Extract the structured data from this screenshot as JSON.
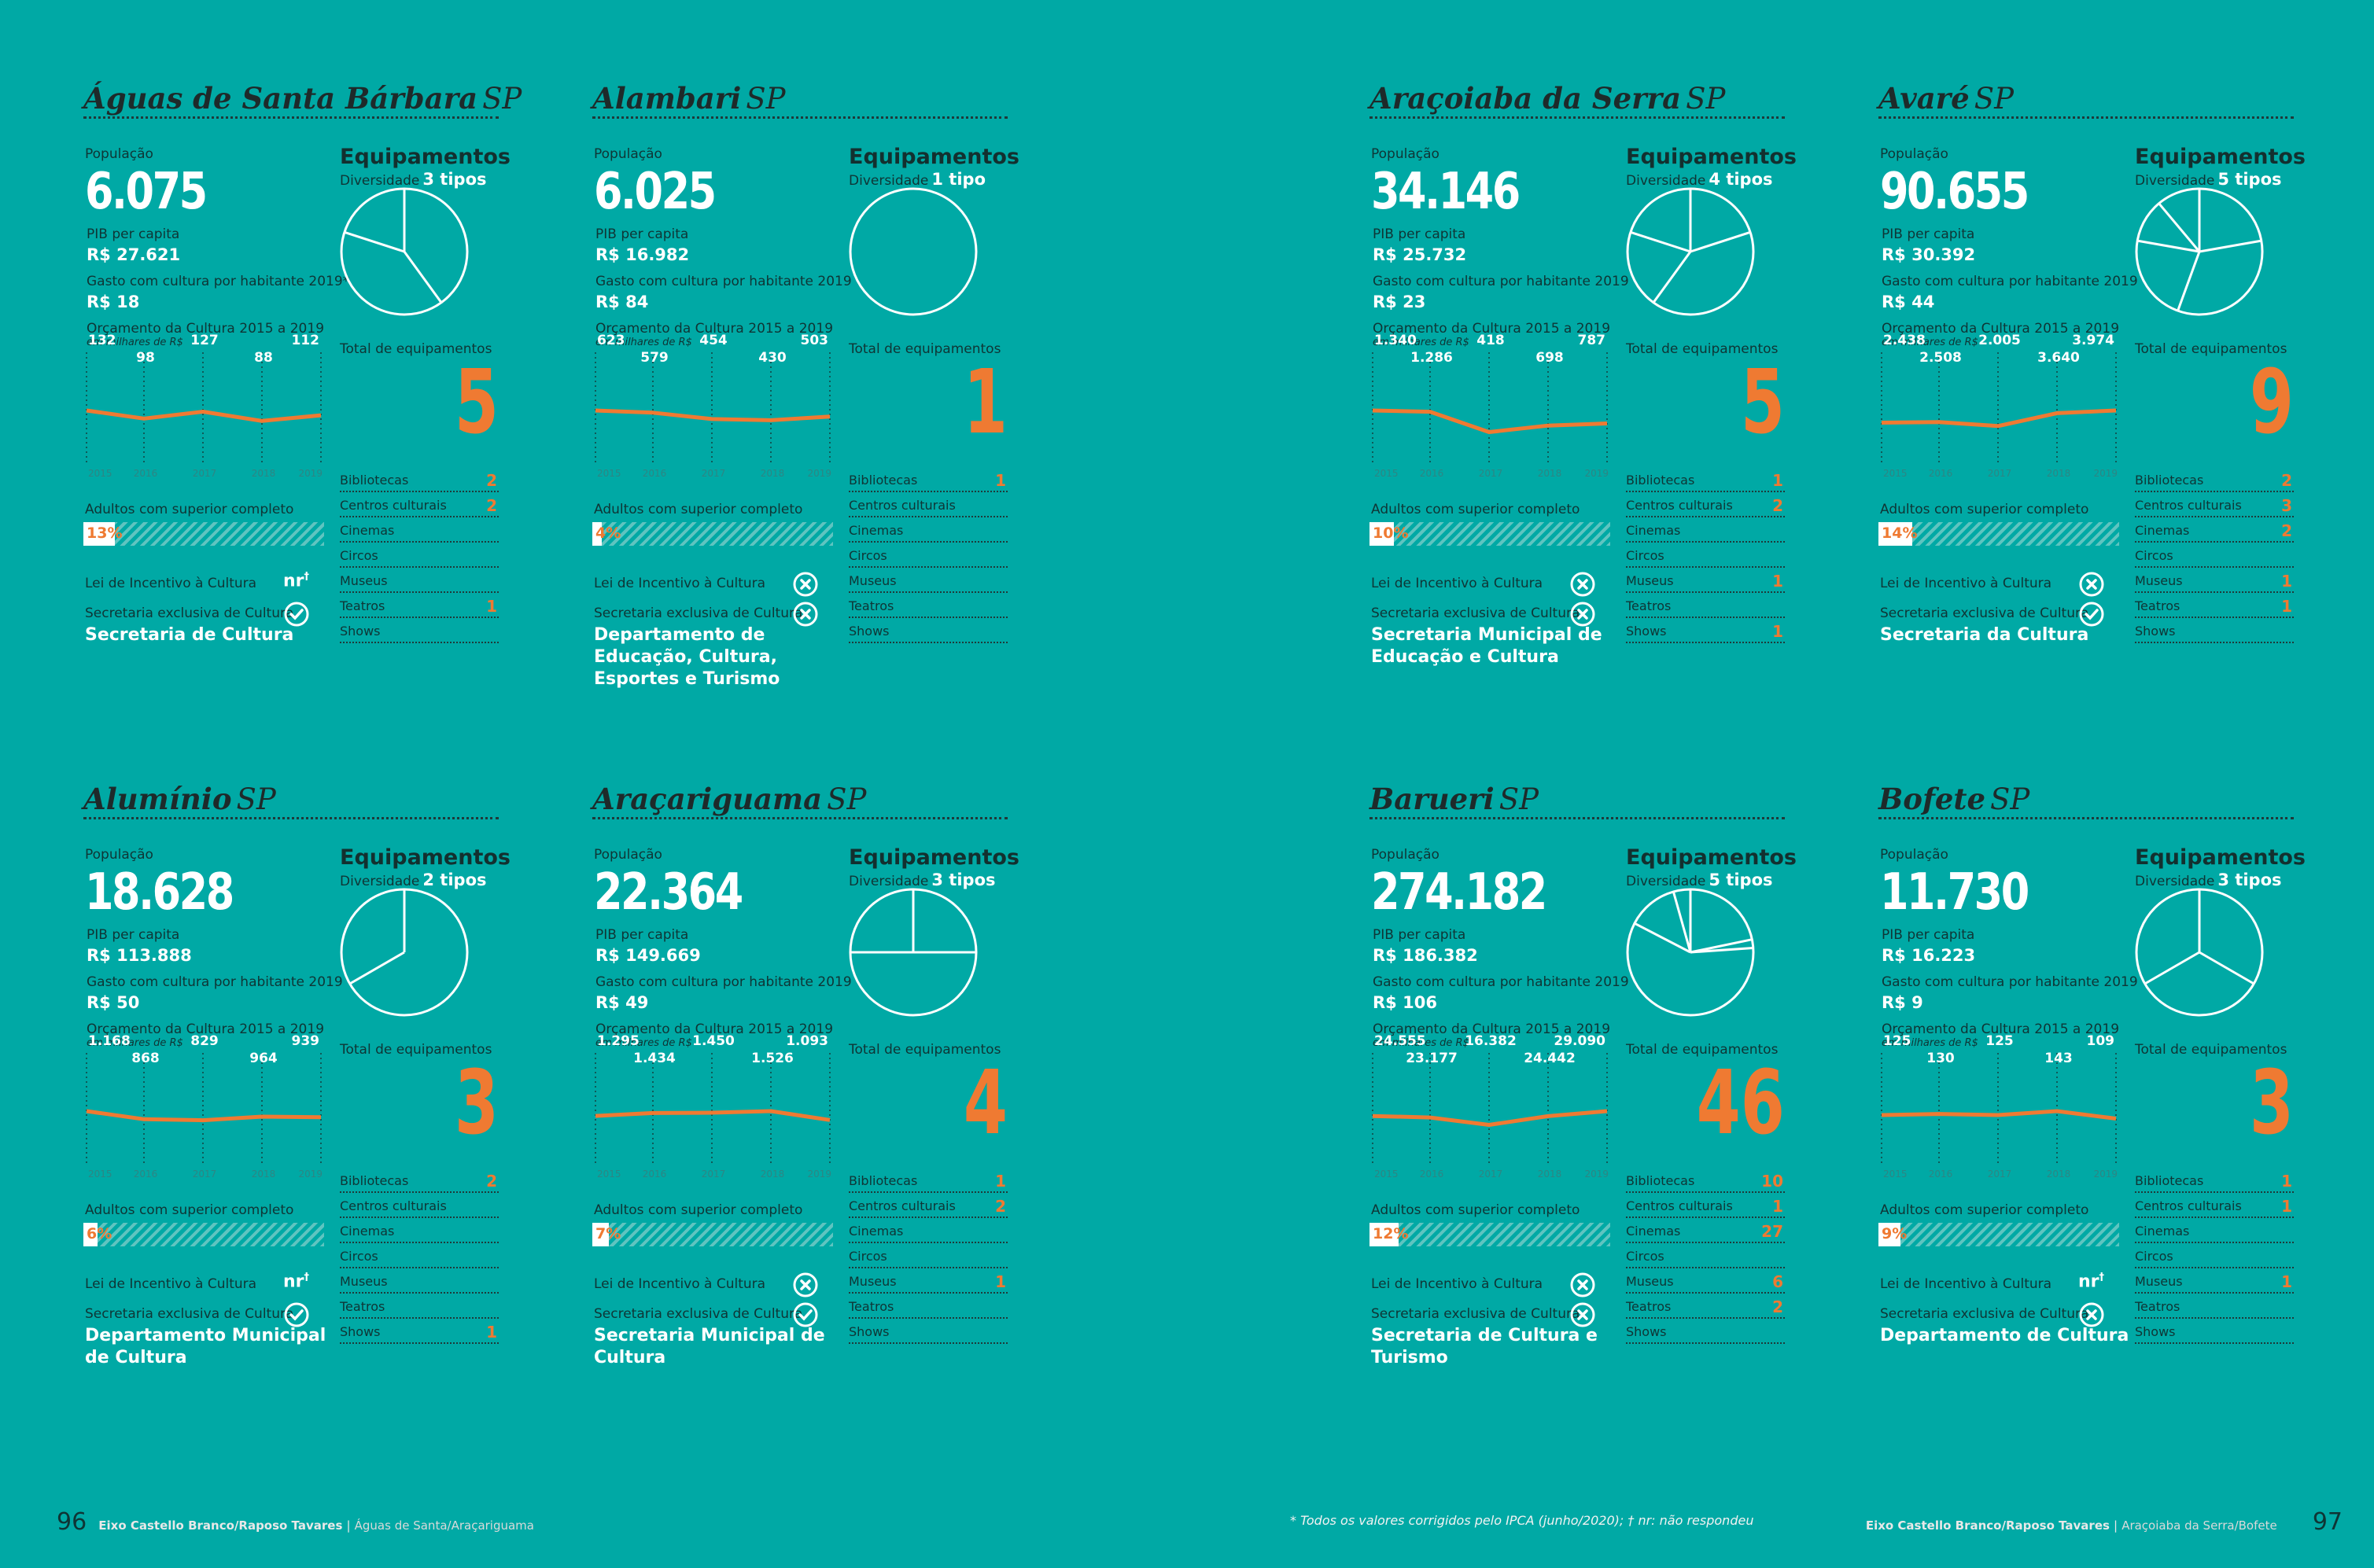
{
  "labels": {
    "populacao": "População",
    "pib": "PIB per capita",
    "gasto": "Gasto com cultura por habitante 2019",
    "gasto_star": "Gasto com cultura por habitante 2019*",
    "orcamento": "Orçamento da Cultura 2015 a 2019",
    "orcamento_unit": "em milhares de R$",
    "equipamentos": "Equipamentos",
    "diversidade": "Diversidade",
    "total_equip": "Total de equipamentos",
    "adultos": "Adultos com superior completo",
    "lei": "Lei de Incentivo à Cultura",
    "secretaria": "Secretaria exclusiva de Cultura",
    "years": [
      "2015",
      "2016",
      "2017",
      "2018",
      "2019"
    ],
    "equip_types": [
      "Bibliotecas",
      "Centros culturais",
      "Cinemas",
      "Circos",
      "Museus",
      "Teatros",
      "Shows"
    ]
  },
  "colors": {
    "background": "#00a9a5",
    "accent": "#ef7a32",
    "dark": "#0f3535"
  },
  "municipalities": [
    {
      "name": "Águas de Santa Bárbara",
      "state": "SP",
      "population": "6.075",
      "pib": "R$ 27.621",
      "gasto": "R$ 18",
      "gasto_star": true,
      "budget": [
        "132",
        "98",
        "127",
        "88",
        "112"
      ],
      "diversity": "3 tipos",
      "total": "5",
      "pie_counts": [
        2,
        2,
        1
      ],
      "equip_counts": [
        "2",
        "2",
        "",
        "",
        "",
        "1",
        ""
      ],
      "adults_pct": "13%",
      "adults_value": 13,
      "lei": "nr",
      "secretaria": "yes",
      "secretaria_name": "Secretaria de Cultura"
    },
    {
      "name": "Alambari",
      "state": "SP",
      "population": "6.025",
      "pib": "R$ 16.982",
      "gasto": "R$ 84",
      "gasto_star": false,
      "budget": [
        "623",
        "579",
        "454",
        "430",
        "503"
      ],
      "diversity": "1 tipo",
      "total": "1",
      "pie_counts": [
        1
      ],
      "equip_counts": [
        "1",
        "",
        "",
        "",
        "",
        "",
        ""
      ],
      "adults_pct": "4%",
      "adults_value": 4,
      "lei": "no",
      "secretaria": "no",
      "secretaria_name": "Departamento de Educação, Cultura, Esportes e Turismo"
    },
    {
      "name": "Araçoiaba da Serra",
      "state": "SP",
      "population": "34.146",
      "pib": "R$ 25.732",
      "gasto": "R$ 23",
      "gasto_star": false,
      "budget": [
        "1.340",
        "1.286",
        "418",
        "698",
        "787"
      ],
      "diversity": "4 tipos",
      "total": "5",
      "pie_counts": [
        1,
        2,
        1,
        1
      ],
      "equip_counts": [
        "1",
        "2",
        "",
        "",
        "1",
        "",
        "1"
      ],
      "adults_pct": "10%",
      "adults_value": 10,
      "lei": "no",
      "secretaria": "no",
      "secretaria_name": "Secretaria Municipal de Educação e Cultura"
    },
    {
      "name": "Avaré",
      "state": "SP",
      "population": "90.655",
      "pib": "R$ 30.392",
      "gasto": "R$ 44",
      "gasto_star": false,
      "budget": [
        "2.438",
        "2.508",
        "2.005",
        "3.640",
        "3.974"
      ],
      "diversity": "5 tipos",
      "total": "9",
      "pie_counts": [
        2,
        3,
        2,
        1,
        1
      ],
      "equip_counts": [
        "2",
        "3",
        "2",
        "",
        "1",
        "1",
        ""
      ],
      "adults_pct": "14%",
      "adults_value": 14,
      "lei": "no",
      "secretaria": "yes",
      "secretaria_name": "Secretaria da Cultura"
    },
    {
      "name": "Alumínio",
      "state": "SP",
      "population": "18.628",
      "pib": "R$ 113.888",
      "gasto": "R$ 50",
      "gasto_star": false,
      "budget": [
        "1.168",
        "868",
        "829",
        "964",
        "939"
      ],
      "diversity": "2 tipos",
      "total": "3",
      "pie_counts": [
        2,
        1
      ],
      "equip_counts": [
        "2",
        "",
        "",
        "",
        "",
        "",
        "1"
      ],
      "adults_pct": "6%",
      "adults_value": 6,
      "lei": "nr",
      "secretaria": "yes",
      "secretaria_name": "Departamento Municipal de Cultura"
    },
    {
      "name": "Araçariguama",
      "state": "SP",
      "population": "22.364",
      "pib": "R$ 149.669",
      "gasto": "R$ 49",
      "gasto_star": false,
      "budget": [
        "1.295",
        "1.434",
        "1.450",
        "1.526",
        "1.093"
      ],
      "diversity": "3 tipos",
      "total": "4",
      "pie_counts": [
        1,
        2,
        1
      ],
      "equip_counts": [
        "1",
        "2",
        "",
        "",
        "1",
        "",
        ""
      ],
      "adults_pct": "7%",
      "adults_value": 7,
      "lei": "no",
      "secretaria": "yes",
      "secretaria_name": "Secretaria Municipal de Cultura"
    },
    {
      "name": "Barueri",
      "state": "SP",
      "population": "274.182",
      "pib": "R$ 186.382",
      "gasto": "R$ 106",
      "gasto_star": false,
      "budget": [
        "24.555",
        "23.177",
        "16.382",
        "24.442",
        "29.090"
      ],
      "diversity": "5 tipos",
      "total": "46",
      "pie_counts": [
        10,
        1,
        27,
        6,
        2
      ],
      "equip_counts": [
        "10",
        "1",
        "27",
        "",
        "6",
        "2",
        ""
      ],
      "adults_pct": "12%",
      "adults_value": 12,
      "lei": "no",
      "secretaria": "no",
      "secretaria_name": "Secretaria de Cultura e Turismo"
    },
    {
      "name": "Bofete",
      "state": "SP",
      "population": "11.730",
      "pib": "R$ 16.223",
      "gasto": "R$ 9",
      "gasto_star": false,
      "budget": [
        "125",
        "130",
        "125",
        "143",
        "109"
      ],
      "diversity": "3 tipos",
      "total": "3",
      "pie_counts": [
        1,
        1,
        1
      ],
      "equip_counts": [
        "1",
        "1",
        "",
        "",
        "1",
        "",
        ""
      ],
      "adults_pct": "9%",
      "adults_value": 9,
      "lei": "nr",
      "secretaria": "no",
      "secretaria_name": "Departamento de Cultura"
    }
  ],
  "footer": {
    "left_page": "96",
    "left_section": "Eixo Castello Branco/Raposo Tavares",
    "left_range": "Águas de Santa/Araçariguama",
    "right_page": "97",
    "right_section": "Eixo Castello Branco/Raposo Tavares",
    "right_range": "Araçoiaba da Serra/Bofete",
    "separator": "|",
    "footnote": "*  Todos os valores corrigidos pelo IPCA (junho/2020);   † nr: não respondeu"
  }
}
